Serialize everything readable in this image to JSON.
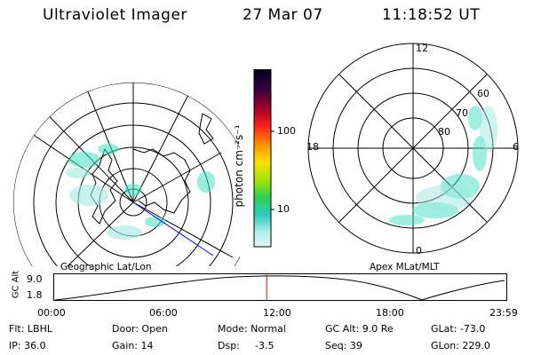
{
  "header": {
    "instrument": "Ultraviolet Imager",
    "date": "27 Mar 07",
    "time": "11:18:52 UT"
  },
  "left_panel": {
    "label": "Geographic Lat/Lon"
  },
  "right_panel": {
    "label": "Apex MLat/MLT",
    "mlt_labels": {
      "top": "12",
      "right": "6",
      "bottom": "0",
      "left": "18"
    },
    "lat_labels": [
      "60",
      "70",
      "80"
    ]
  },
  "colorbar": {
    "unit_label": "photon cm⁻²s⁻¹",
    "tick_100": "100",
    "tick_10": "10"
  },
  "timeline": {
    "ylabel": "GC Alt",
    "y_top": "9.0",
    "y_bottom": "1.8",
    "x_ticks": [
      "00:00",
      "06:00",
      "12:00",
      "18:00",
      "23:59"
    ],
    "current_time_fraction": 0.47
  },
  "info": {
    "flt": "Flt: LBHL",
    "ip": "IP: 36.0",
    "door": "Door: Open",
    "gain": "Gain: 14",
    "mode": "Mode: Normal",
    "dsp_label": "Dsp:",
    "dsp_value": "-3.5",
    "gc_alt": "GC Alt: 9.0 Re",
    "seq": "Seq: 39",
    "glat": "GLat: -73.0",
    "glon": "GLon: 229.0"
  },
  "colors": {
    "current_time_marker": "#ff0000",
    "meridian_line": "#0000ff",
    "aurora": "#40e0c0"
  }
}
